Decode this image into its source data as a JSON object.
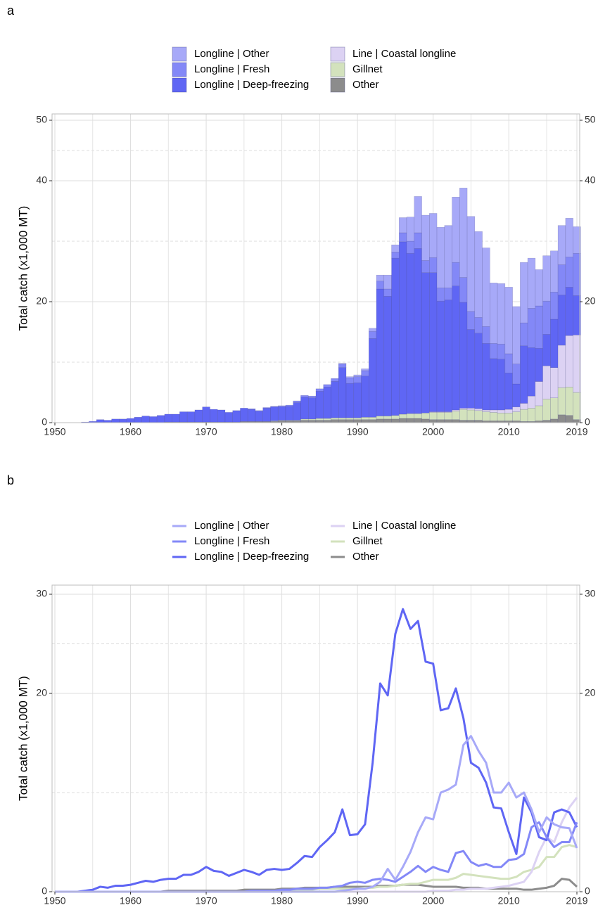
{
  "chart_data": [
    {
      "type": "bar",
      "panel_label": "a",
      "y_label": "Total catch (x1,000 MT)",
      "stacked": true,
      "x": [
        1950,
        1951,
        1952,
        1953,
        1954,
        1955,
        1956,
        1957,
        1958,
        1959,
        1960,
        1961,
        1962,
        1963,
        1964,
        1965,
        1966,
        1967,
        1968,
        1969,
        1970,
        1971,
        1972,
        1973,
        1974,
        1975,
        1976,
        1977,
        1978,
        1979,
        1980,
        1981,
        1982,
        1983,
        1984,
        1985,
        1986,
        1987,
        1988,
        1989,
        1990,
        1991,
        1992,
        1993,
        1994,
        1995,
        1996,
        1997,
        1998,
        1999,
        2000,
        2001,
        2002,
        2003,
        2004,
        2005,
        2006,
        2007,
        2008,
        2009,
        2010,
        2011,
        2012,
        2013,
        2014,
        2015,
        2016,
        2017,
        2018,
        2019
      ],
      "series": [
        {
          "name": "Longline | Other",
          "color": "#a7a9f8",
          "values": [
            0,
            0,
            0,
            0,
            0,
            0,
            0,
            0,
            0,
            0,
            0,
            0,
            0,
            0,
            0,
            0,
            0,
            0,
            0,
            0,
            0,
            0,
            0,
            0,
            0,
            0,
            0,
            0,
            0,
            0,
            0,
            0,
            0,
            0,
            0,
            0,
            0,
            0,
            0.1,
            0.2,
            0.3,
            0.3,
            0.5,
            1.0,
            2.3,
            1.2,
            2.5,
            4.0,
            6.0,
            7.5,
            7.3,
            10.0,
            10.3,
            10.8,
            14.8,
            15.7,
            14.2,
            13.0,
            10.0,
            10.0,
            11.0,
            9.5,
            10.0,
            8.3,
            6.0,
            7.5,
            6.8,
            6.5,
            6.4,
            4.4
          ]
        },
        {
          "name": "Longline | Fresh",
          "color": "#8388f7",
          "values": [
            0,
            0,
            0,
            0,
            0,
            0,
            0,
            0,
            0,
            0,
            0,
            0,
            0,
            0,
            0,
            0,
            0,
            0,
            0,
            0,
            0,
            0,
            0,
            0,
            0,
            0,
            0.1,
            0.1,
            0.1,
            0.1,
            0.2,
            0.2,
            0.3,
            0.3,
            0.3,
            0.4,
            0.4,
            0.5,
            0.6,
            0.9,
            1.0,
            0.9,
            1.2,
            1.3,
            1.2,
            1.0,
            1.5,
            2.0,
            2.6,
            2.0,
            2.5,
            2.2,
            2.0,
            3.9,
            4.1,
            3.0,
            2.6,
            2.8,
            2.5,
            2.5,
            3.2,
            3.3,
            3.8,
            6.5,
            7.0,
            5.5,
            4.5,
            5.0,
            5.0,
            7.0
          ]
        },
        {
          "name": "Longline | Deep-freezing",
          "color": "#5f66f4",
          "values": [
            0,
            0,
            0,
            0,
            0.1,
            0.2,
            0.5,
            0.4,
            0.6,
            0.6,
            0.7,
            0.9,
            1.1,
            1.0,
            1.2,
            1.3,
            1.3,
            1.7,
            1.7,
            2.0,
            2.5,
            2.1,
            2.0,
            1.6,
            1.9,
            2.2,
            2.0,
            1.7,
            2.2,
            2.3,
            2.2,
            2.3,
            2.9,
            3.6,
            3.5,
            4.5,
            5.2,
            6.0,
            8.3,
            5.7,
            5.8,
            6.8,
            13.0,
            21.0,
            19.8,
            26.0,
            28.5,
            26.5,
            27.3,
            23.2,
            23.0,
            18.3,
            18.5,
            20.5,
            17.5,
            13.0,
            12.5,
            11.0,
            8.5,
            8.4,
            6.0,
            3.8,
            9.5,
            8.0,
            5.5,
            5.2,
            8.0,
            8.3,
            8.0,
            6.5
          ]
        },
        {
          "name": "Line | Coastal longline",
          "color": "#dcd2f3",
          "values": [
            0,
            0,
            0,
            0,
            0,
            0,
            0,
            0,
            0,
            0,
            0,
            0,
            0,
            0,
            0,
            0,
            0,
            0,
            0,
            0,
            0,
            0,
            0,
            0,
            0,
            0,
            0,
            0,
            0,
            0,
            0,
            0,
            0,
            0,
            0,
            0,
            0,
            0,
            0,
            0,
            0,
            0,
            0,
            0,
            0,
            0,
            0,
            0,
            0,
            0,
            0.1,
            0.1,
            0.1,
            0.2,
            0.2,
            0.3,
            0.3,
            0.3,
            0.4,
            0.5,
            0.6,
            0.8,
            1.0,
            2.0,
            4.0,
            5.5,
            5.0,
            7.0,
            8.5,
            9.5
          ]
        },
        {
          "name": "Gillnet",
          "color": "#d3e2bd",
          "values": [
            0,
            0,
            0,
            0,
            0,
            0,
            0,
            0,
            0,
            0,
            0,
            0,
            0,
            0,
            0,
            0,
            0,
            0,
            0,
            0,
            0,
            0,
            0,
            0,
            0,
            0,
            0,
            0,
            0,
            0.1,
            0.1,
            0.1,
            0.1,
            0.2,
            0.2,
            0.3,
            0.3,
            0.3,
            0.3,
            0.3,
            0.3,
            0.4,
            0.4,
            0.5,
            0.5,
            0.6,
            0.7,
            0.8,
            0.8,
            1.0,
            1.2,
            1.2,
            1.2,
            1.4,
            1.8,
            1.7,
            1.6,
            1.5,
            1.4,
            1.3,
            1.3,
            1.5,
            2.0,
            2.2,
            2.5,
            3.5,
            3.5,
            4.5,
            4.7,
            4.5
          ]
        },
        {
          "name": "Other",
          "color": "#8c8c8c",
          "values": [
            0,
            0,
            0,
            0,
            0,
            0,
            0,
            0,
            0,
            0,
            0,
            0,
            0,
            0,
            0,
            0.1,
            0.1,
            0.1,
            0.1,
            0.1,
            0.1,
            0.1,
            0.1,
            0.1,
            0.1,
            0.2,
            0.2,
            0.2,
            0.2,
            0.2,
            0.3,
            0.3,
            0.3,
            0.4,
            0.4,
            0.4,
            0.4,
            0.5,
            0.5,
            0.5,
            0.5,
            0.5,
            0.5,
            0.6,
            0.6,
            0.6,
            0.7,
            0.7,
            0.7,
            0.6,
            0.5,
            0.5,
            0.5,
            0.5,
            0.4,
            0.4,
            0.4,
            0.3,
            0.3,
            0.3,
            0.3,
            0.3,
            0.2,
            0.2,
            0.3,
            0.4,
            0.6,
            1.3,
            1.2,
            0.5
          ]
        }
      ],
      "xlim": [
        1950,
        2019
      ],
      "xticks": [
        1950,
        1960,
        1970,
        1980,
        1990,
        2000,
        2010,
        2019
      ],
      "minor_xticks": [
        1955,
        1965,
        1975,
        1985,
        1995,
        2005,
        2015
      ],
      "ylim": [
        0,
        50
      ],
      "yticks": [
        0,
        20,
        40,
        50
      ],
      "minor_yticks": [
        10,
        30,
        45
      ],
      "grid": true,
      "right_axis": true
    },
    {
      "type": "line",
      "panel_label": "b",
      "y_label": "Total catch (x1,000 MT)",
      "x": [
        1950,
        1951,
        1952,
        1953,
        1954,
        1955,
        1956,
        1957,
        1958,
        1959,
        1960,
        1961,
        1962,
        1963,
        1964,
        1965,
        1966,
        1967,
        1968,
        1969,
        1970,
        1971,
        1972,
        1973,
        1974,
        1975,
        1976,
        1977,
        1978,
        1979,
        1980,
        1981,
        1982,
        1983,
        1984,
        1985,
        1986,
        1987,
        1988,
        1989,
        1990,
        1991,
        1992,
        1993,
        1994,
        1995,
        1996,
        1997,
        1998,
        1999,
        2000,
        2001,
        2002,
        2003,
        2004,
        2005,
        2006,
        2007,
        2008,
        2009,
        2010,
        2011,
        2012,
        2013,
        2014,
        2015,
        2016,
        2017,
        2018,
        2019
      ],
      "series": [
        {
          "name": "Longline | Other",
          "color": "#a7a9f8",
          "values": [
            0,
            0,
            0,
            0,
            0,
            0,
            0,
            0,
            0,
            0,
            0,
            0,
            0,
            0,
            0,
            0,
            0,
            0,
            0,
            0,
            0,
            0,
            0,
            0,
            0,
            0,
            0,
            0,
            0,
            0,
            0,
            0,
            0,
            0,
            0,
            0,
            0,
            0,
            0.1,
            0.2,
            0.3,
            0.3,
            0.5,
            1.0,
            2.3,
            1.2,
            2.5,
            4.0,
            6.0,
            7.5,
            7.3,
            10.0,
            10.3,
            10.8,
            14.8,
            15.7,
            14.2,
            13.0,
            10.0,
            10.0,
            11.0,
            9.5,
            10.0,
            8.3,
            6.0,
            7.5,
            6.8,
            6.5,
            6.4,
            4.4
          ]
        },
        {
          "name": "Longline | Fresh",
          "color": "#8388f7",
          "values": [
            0,
            0,
            0,
            0,
            0,
            0,
            0,
            0,
            0,
            0,
            0,
            0,
            0,
            0,
            0,
            0,
            0,
            0,
            0,
            0,
            0,
            0,
            0,
            0,
            0,
            0,
            0.1,
            0.1,
            0.1,
            0.1,
            0.2,
            0.2,
            0.3,
            0.3,
            0.3,
            0.4,
            0.4,
            0.5,
            0.6,
            0.9,
            1.0,
            0.9,
            1.2,
            1.3,
            1.2,
            1.0,
            1.5,
            2.0,
            2.6,
            2.0,
            2.5,
            2.2,
            2.0,
            3.9,
            4.1,
            3.0,
            2.6,
            2.8,
            2.5,
            2.5,
            3.2,
            3.3,
            3.8,
            6.5,
            7.0,
            5.5,
            4.5,
            5.0,
            5.0,
            7.0
          ]
        },
        {
          "name": "Longline | Deep-freezing",
          "color": "#5f66f4",
          "values": [
            0,
            0,
            0,
            0,
            0.1,
            0.2,
            0.5,
            0.4,
            0.6,
            0.6,
            0.7,
            0.9,
            1.1,
            1.0,
            1.2,
            1.3,
            1.3,
            1.7,
            1.7,
            2.0,
            2.5,
            2.1,
            2.0,
            1.6,
            1.9,
            2.2,
            2.0,
            1.7,
            2.2,
            2.3,
            2.2,
            2.3,
            2.9,
            3.6,
            3.5,
            4.5,
            5.2,
            6.0,
            8.3,
            5.7,
            5.8,
            6.8,
            13.0,
            21.0,
            19.8,
            26.0,
            28.5,
            26.5,
            27.3,
            23.2,
            23.0,
            18.3,
            18.5,
            20.5,
            17.5,
            13.0,
            12.5,
            11.0,
            8.5,
            8.4,
            6.0,
            3.8,
            9.5,
            8.0,
            5.5,
            5.2,
            8.0,
            8.3,
            8.0,
            6.5
          ]
        },
        {
          "name": "Line | Coastal longline",
          "color": "#dcd2f3",
          "values": [
            0,
            0,
            0,
            0,
            0,
            0,
            0,
            0,
            0,
            0,
            0,
            0,
            0,
            0,
            0,
            0,
            0,
            0,
            0,
            0,
            0,
            0,
            0,
            0,
            0,
            0,
            0,
            0,
            0,
            0,
            0,
            0,
            0,
            0,
            0,
            0,
            0,
            0,
            0,
            0,
            0,
            0,
            0,
            0,
            0,
            0,
            0,
            0,
            0,
            0,
            0.1,
            0.1,
            0.1,
            0.2,
            0.2,
            0.3,
            0.3,
            0.3,
            0.4,
            0.5,
            0.6,
            0.8,
            1.0,
            2.0,
            4.0,
            5.5,
            5.0,
            7.0,
            8.5,
            9.5
          ]
        },
        {
          "name": "Gillnet",
          "color": "#d3e2bd",
          "values": [
            0,
            0,
            0,
            0,
            0,
            0,
            0,
            0,
            0,
            0,
            0,
            0,
            0,
            0,
            0,
            0,
            0,
            0,
            0,
            0,
            0,
            0,
            0,
            0,
            0,
            0,
            0,
            0,
            0,
            0.1,
            0.1,
            0.1,
            0.1,
            0.2,
            0.2,
            0.3,
            0.3,
            0.3,
            0.3,
            0.3,
            0.3,
            0.4,
            0.4,
            0.5,
            0.5,
            0.6,
            0.7,
            0.8,
            0.8,
            1.0,
            1.2,
            1.2,
            1.2,
            1.4,
            1.8,
            1.7,
            1.6,
            1.5,
            1.4,
            1.3,
            1.3,
            1.5,
            2.0,
            2.2,
            2.5,
            3.5,
            3.5,
            4.5,
            4.7,
            4.5
          ]
        },
        {
          "name": "Other",
          "color": "#8c8c8c",
          "values": [
            0,
            0,
            0,
            0,
            0,
            0,
            0,
            0,
            0,
            0,
            0,
            0,
            0,
            0,
            0,
            0.1,
            0.1,
            0.1,
            0.1,
            0.1,
            0.1,
            0.1,
            0.1,
            0.1,
            0.1,
            0.2,
            0.2,
            0.2,
            0.2,
            0.2,
            0.3,
            0.3,
            0.3,
            0.4,
            0.4,
            0.4,
            0.4,
            0.5,
            0.5,
            0.5,
            0.5,
            0.5,
            0.5,
            0.6,
            0.6,
            0.6,
            0.7,
            0.7,
            0.7,
            0.6,
            0.5,
            0.5,
            0.5,
            0.5,
            0.4,
            0.4,
            0.4,
            0.3,
            0.3,
            0.3,
            0.3,
            0.3,
            0.2,
            0.2,
            0.3,
            0.4,
            0.6,
            1.3,
            1.2,
            0.5
          ]
        }
      ],
      "xlim": [
        1950,
        2019
      ],
      "xticks": [
        1950,
        1960,
        1970,
        1980,
        1990,
        2000,
        2010,
        2019
      ],
      "minor_xticks": [
        1955,
        1965,
        1975,
        1985,
        1995,
        2005,
        2015
      ],
      "ylim": [
        0,
        30
      ],
      "yticks": [
        0,
        20,
        30
      ],
      "minor_yticks": [
        10,
        25
      ],
      "grid": true,
      "right_axis": true
    }
  ]
}
